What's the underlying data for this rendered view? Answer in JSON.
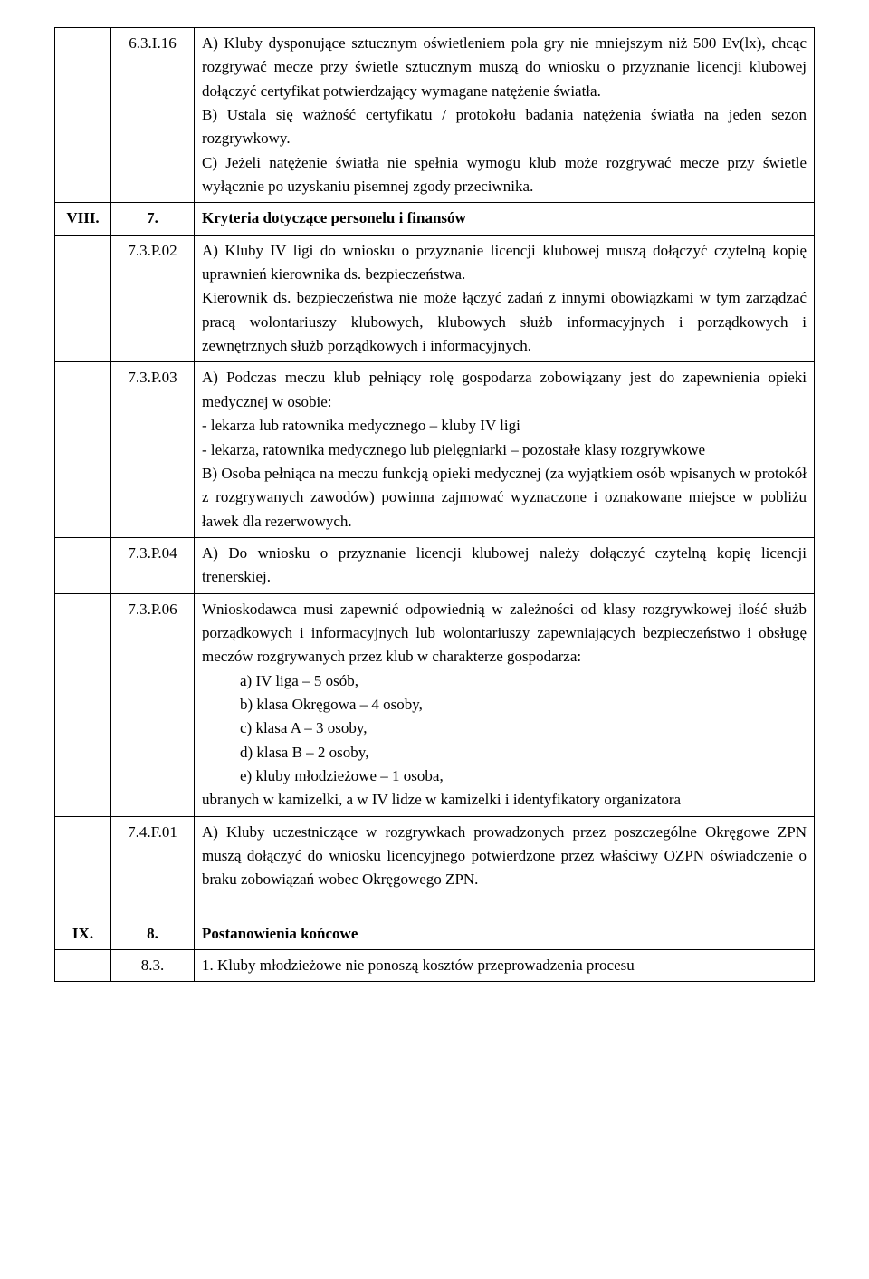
{
  "rows": {
    "r1": {
      "col1": "",
      "col2": "6.3.I.16",
      "content": "A) Kluby dysponujące sztucznym oświetleniem pola gry nie mniejszym niż 500 Ev(lx), chcąc rozgrywać mecze przy świetle sztucznym muszą do wniosku o przyznanie licencji klubowej dołączyć certyfikat potwierdzający wymagane natężenie światła.\nB) Ustala się ważność certyfikatu / protokołu badania natężenia światła na jeden sezon rozgrywkowy.\nC) Jeżeli natężenie światła nie spełnia wymogu klub może rozgrywać mecze przy świetle wyłącznie po uzyskaniu pisemnej zgody przeciwnika."
    },
    "r2": {
      "col1": "VIII.",
      "col2": "7.",
      "content": "Kryteria dotyczące personelu i finansów"
    },
    "r3": {
      "col1": "",
      "col2": "7.3.P.02",
      "content": "A) Kluby IV ligi do wniosku o przyznanie licencji klubowej muszą dołączyć czytelną kopię uprawnień kierownika ds. bezpieczeństwa.\nKierownik ds. bezpieczeństwa nie może łączyć zadań z innymi obowiązkami w tym zarządzać pracą wolontariuszy klubowych, klubowych służb informacyjnych i porządkowych i zewnętrznych służb porządkowych i informacyjnych."
    },
    "r4": {
      "col1": "",
      "col2": "7.3.P.03",
      "content": "A) Podczas meczu klub pełniący rolę gospodarza zobowiązany jest do zapewnienia opieki medycznej w osobie:\n- lekarza lub ratownika medycznego – kluby IV ligi\n- lekarza, ratownika medycznego lub pielęgniarki – pozostałe klasy rozgrywkowe\nB) Osoba pełniąca na meczu funkcją opieki medycznej (za wyjątkiem osób wpisanych w protokół z rozgrywanych zawodów) powinna zajmować wyznaczone i oznakowane miejsce w pobliżu ławek dla rezerwowych."
    },
    "r5": {
      "col1": "",
      "col2": "7.3.P.04",
      "content": "A) Do wniosku o przyznanie licencji klubowej należy dołączyć czytelną kopię licencji trenerskiej."
    },
    "r6": {
      "col1": "",
      "col2": "7.3.P.06",
      "intro": "Wnioskodawca musi zapewnić odpowiednią w zależności od klasy rozgrywkowej ilość służb porządkowych i informacyjnych lub wolontariuszy zapewniających bezpieczeństwo i obsługę meczów rozgrywanych przez klub w charakterze gospodarza:",
      "items": {
        "a": "a)   IV liga – 5 osób,",
        "b": "b)   klasa Okręgowa – 4 osoby,",
        "c": "c)   klasa A – 3 osoby,",
        "d": "d)   klasa B – 2 osoby,",
        "e": "e)   kluby młodzieżowe – 1 osoba,"
      },
      "outro": "ubranych w kamizelki, a w IV lidze w kamizelki i identyfikatory organizatora"
    },
    "r7": {
      "col1": "",
      "col2": "7.4.F.01",
      "content": "A) Kluby uczestniczące w rozgrywkach prowadzonych przez poszczególne Okręgowe ZPN muszą dołączyć do wniosku licencyjnego potwierdzone przez właściwy OZPN oświadczenie o braku zobowiązań wobec Okręgowego ZPN."
    },
    "r8": {
      "col1": "IX.",
      "col2": "8.",
      "content": "Postanowienia końcowe"
    },
    "r9": {
      "col1": "",
      "col2": "8.3.",
      "content": "1. Kluby młodzieżowe nie ponoszą kosztów przeprowadzenia procesu"
    }
  }
}
